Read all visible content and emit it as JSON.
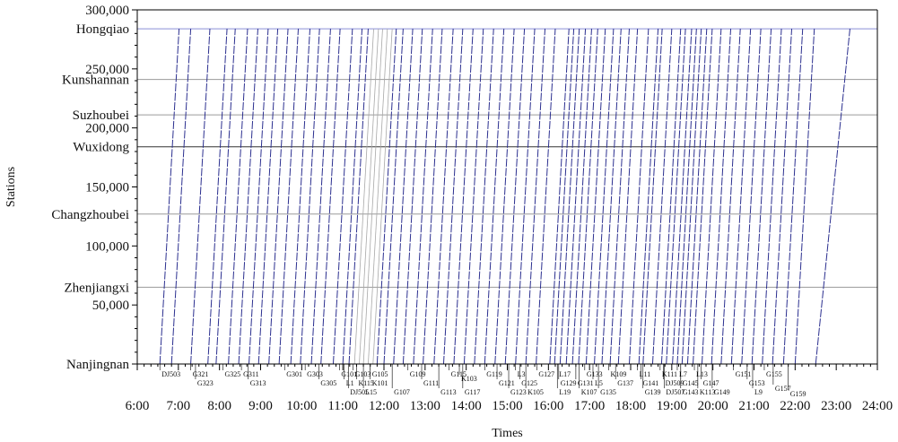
{
  "chart_data": {
    "type": "line",
    "xlabel": "Times",
    "ylabel": "Stations",
    "grid": "station lines only",
    "xlim": [
      "6:00",
      "24:00"
    ],
    "ylim": [
      0,
      300000
    ],
    "x_ticks": [
      "6:00",
      "7:00",
      "8:00",
      "9:00",
      "10:00",
      "11:00",
      "12:00",
      "13:00",
      "14:00",
      "15:00",
      "16:00",
      "17:00",
      "18:00",
      "19:00",
      "20:00",
      "21:00",
      "22:00",
      "23:00",
      "24:00"
    ],
    "y_ticks": [
      {
        "label": "300,000",
        "value": 300000
      },
      {
        "label": "250,000",
        "value": 250000
      },
      {
        "label": "200,000",
        "value": 200000
      },
      {
        "label": "150,000",
        "value": 150000
      },
      {
        "label": "100,000",
        "value": 100000
      },
      {
        "label": "50,000",
        "value": 50000
      }
    ],
    "stations": [
      {
        "name": "Hongqiao",
        "km": 284000
      },
      {
        "name": "Kunshannan",
        "km": 241000
      },
      {
        "name": "Suzhoubei",
        "km": 211000
      },
      {
        "name": "Wuxidong",
        "km": 184000
      },
      {
        "name": "Changzhoubei",
        "km": 127000
      },
      {
        "name": "Zhenjiangxi",
        "km": 65000
      },
      {
        "name": "Nanjingnan",
        "km": 0
      }
    ],
    "trains_start_times": [
      "6:33",
      "6:50",
      "7:18",
      "7:43",
      "7:55",
      "8:13",
      "8:28",
      "8:43",
      "8:57",
      "9:12",
      "9:27",
      "9:44",
      "9:58",
      "10:14",
      "10:28",
      "10:46",
      "11:00",
      "11:09",
      "11:17",
      "11:24",
      "11:30",
      "11:37",
      "11:44",
      "11:50",
      "12:00",
      "12:14",
      "12:28",
      "12:43",
      "12:57",
      "13:13",
      "13:27",
      "13:42",
      "13:57",
      "14:12",
      "14:27",
      "14:42",
      "14:57",
      "15:12",
      "15:27",
      "15:42",
      "16:02",
      "16:09",
      "16:17",
      "16:26",
      "16:35",
      "16:44",
      "16:55",
      "17:07",
      "17:18",
      "17:30",
      "17:42",
      "17:58",
      "18:12",
      "18:18",
      "18:32",
      "18:45",
      "18:52",
      "19:01",
      "19:08",
      "19:15",
      "19:23",
      "19:31",
      "19:44",
      "19:58",
      "20:12",
      "20:27",
      "20:42",
      "20:57",
      "21:12",
      "21:27",
      "21:43",
      "22:00",
      "22:30"
    ],
    "trains_end_times": [
      "7:01",
      "7:18",
      "7:46",
      "8:11",
      "8:23",
      "8:41",
      "8:56",
      "9:11",
      "9:25",
      "9:40",
      "9:55",
      "10:12",
      "10:26",
      "10:42",
      "10:56",
      "11:14",
      "11:28",
      "11:37",
      "11:45",
      "11:52",
      "11:58",
      "12:05",
      "12:12",
      "12:18",
      "12:28",
      "12:42",
      "12:56",
      "13:11",
      "13:25",
      "13:41",
      "13:55",
      "14:10",
      "14:25",
      "14:40",
      "14:55",
      "15:10",
      "15:25",
      "15:40",
      "15:55",
      "16:10",
      "16:30",
      "16:37",
      "16:45",
      "16:54",
      "17:03",
      "17:12",
      "17:23",
      "17:35",
      "17:46",
      "17:58",
      "18:10",
      "18:26",
      "18:40",
      "18:46",
      "19:00",
      "19:13",
      "19:20",
      "19:29",
      "19:36",
      "19:43",
      "19:51",
      "19:59",
      "20:12",
      "20:26",
      "20:40",
      "20:55",
      "21:10",
      "21:25",
      "21:40",
      "21:55",
      "22:11",
      "22:28",
      "23:20"
    ],
    "train_labels": [
      {
        "t": "DJ503",
        "time": "6:33",
        "row": 0
      },
      {
        "t": "G321",
        "time": "7:18",
        "row": 0
      },
      {
        "t": "G323",
        "time": "7:25",
        "row": 1
      },
      {
        "t": "G325",
        "time": "8:05",
        "row": 0
      },
      {
        "t": "G311",
        "time": "8:32",
        "row": 0
      },
      {
        "t": "G313",
        "time": "8:42",
        "row": 1
      },
      {
        "t": "G301",
        "time": "9:35",
        "row": 0
      },
      {
        "t": "G303",
        "time": "10:05",
        "row": 0
      },
      {
        "t": "G305",
        "time": "10:25",
        "row": 1
      },
      {
        "t": "G101",
        "time": "10:55",
        "row": 0
      },
      {
        "t": "L1",
        "time": "11:02",
        "row": 1
      },
      {
        "t": "DJ505",
        "time": "11:08",
        "row": 2
      },
      {
        "t": "G103",
        "time": "11:15",
        "row": 0
      },
      {
        "t": "K115",
        "time": "11:20",
        "row": 1
      },
      {
        "t": "L15",
        "time": "11:30",
        "row": 2
      },
      {
        "t": "G105",
        "time": "11:40",
        "row": 0
      },
      {
        "t": "K101",
        "time": "11:40",
        "row": 1
      },
      {
        "t": "G107",
        "time": "12:12",
        "row": 2
      },
      {
        "t": "G109",
        "time": "12:35",
        "row": 0
      },
      {
        "t": "G111",
        "time": "12:55",
        "row": 1
      },
      {
        "t": "G113",
        "time": "13:20",
        "row": 2
      },
      {
        "t": "G115",
        "time": "13:35",
        "row": 0
      },
      {
        "t": "K103",
        "time": "13:50",
        "row": 0.5
      },
      {
        "t": "G117",
        "time": "13:55",
        "row": 2
      },
      {
        "t": "G119",
        "time": "14:27",
        "row": 0
      },
      {
        "t": "G121",
        "time": "14:45",
        "row": 1
      },
      {
        "t": "G123",
        "time": "15:02",
        "row": 2
      },
      {
        "t": "L3",
        "time": "15:12",
        "row": 0
      },
      {
        "t": "G125",
        "time": "15:18",
        "row": 1
      },
      {
        "t": "K105",
        "time": "15:27",
        "row": 2
      },
      {
        "t": "G127",
        "time": "15:43",
        "row": 0
      },
      {
        "t": "L17",
        "time": "16:13",
        "row": 0
      },
      {
        "t": "G129",
        "time": "16:15",
        "row": 1
      },
      {
        "t": "L19",
        "time": "16:13",
        "row": 2
      },
      {
        "t": "G131",
        "time": "16:40",
        "row": 1
      },
      {
        "t": "K107",
        "time": "16:45",
        "row": 2
      },
      {
        "t": "G133",
        "time": "16:53",
        "row": 0
      },
      {
        "t": "L5",
        "time": "17:05",
        "row": 1
      },
      {
        "t": "G135",
        "time": "17:13",
        "row": 2
      },
      {
        "t": "K109",
        "time": "17:28",
        "row": 0
      },
      {
        "t": "G137",
        "time": "17:38",
        "row": 1
      },
      {
        "t": "L11",
        "time": "18:10",
        "row": 0
      },
      {
        "t": "G141",
        "time": "18:15",
        "row": 1
      },
      {
        "t": "G139",
        "time": "18:18",
        "row": 2
      },
      {
        "t": "K111",
        "time": "18:43",
        "row": 0
      },
      {
        "t": "DJ509",
        "time": "18:48",
        "row": 1
      },
      {
        "t": "DJ507",
        "time": "18:49",
        "row": 2
      },
      {
        "t": "L7",
        "time": "19:08",
        "row": 0
      },
      {
        "t": "G145",
        "time": "19:13",
        "row": 1
      },
      {
        "t": "G143",
        "time": "19:13",
        "row": 2
      },
      {
        "t": "L13",
        "time": "19:33",
        "row": 0
      },
      {
        "t": "G147",
        "time": "19:43",
        "row": 1
      },
      {
        "t": "K113",
        "time": "19:38",
        "row": 2
      },
      {
        "t": "G149",
        "time": "19:59",
        "row": 2
      },
      {
        "t": "G151",
        "time": "20:30",
        "row": 0
      },
      {
        "t": "G153",
        "time": "20:50",
        "row": 1
      },
      {
        "t": "L9",
        "time": "20:58",
        "row": 2
      },
      {
        "t": "G155",
        "time": "21:15",
        "row": 0
      },
      {
        "t": "G157",
        "time": "21:28",
        "row": 1.6
      },
      {
        "t": "G159",
        "time": "21:50",
        "row": 2.2
      }
    ]
  }
}
